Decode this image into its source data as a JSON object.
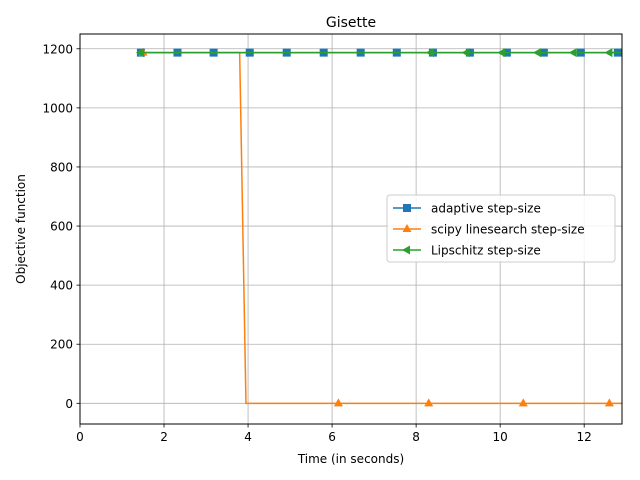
{
  "chart_data": {
    "type": "line",
    "title": "Gisette",
    "xlabel": "Time (in seconds)",
    "ylabel": "Objective function",
    "xlim": [
      0,
      12.9
    ],
    "ylim": [
      -70,
      1250
    ],
    "xticks": [
      0,
      2,
      4,
      6,
      8,
      10,
      12
    ],
    "yticks": [
      0,
      200,
      400,
      600,
      800,
      1000,
      1200
    ],
    "grid": true,
    "legend_position": "center-right",
    "series": [
      {
        "name": "adaptive step-size",
        "color": "#1f77b4",
        "marker": "square",
        "x": [
          1.45,
          2.32,
          3.18,
          4.04,
          4.92,
          5.8,
          6.68,
          7.54,
          8.4,
          9.28,
          10.16,
          11.04,
          11.92,
          12.8,
          12.9
        ],
        "y": [
          1187,
          1187,
          1187,
          1187,
          1187,
          1187,
          1187,
          1187,
          1187,
          1187,
          1187,
          1187,
          1187,
          1187,
          1187
        ],
        "markers_x": [
          1.45,
          2.32,
          3.18,
          4.04,
          4.92,
          5.8,
          6.68,
          7.54,
          8.4,
          9.28,
          10.16,
          11.04,
          11.92,
          12.8
        ]
      },
      {
        "name": "scipy linesearch step-size",
        "color": "#ff7f0e",
        "marker": "triangle-up",
        "x": [
          1.5,
          3.8,
          3.95,
          6.15,
          8.3,
          10.55,
          12.6,
          12.9
        ],
        "y": [
          1187,
          1187,
          0,
          0,
          0,
          0,
          0,
          0
        ],
        "markers_x": [
          1.5,
          6.15,
          8.3,
          10.55,
          12.6
        ]
      },
      {
        "name": "Lipschitz step-size",
        "color": "#2ca02c",
        "marker": "triangle-left",
        "x": [
          1.45,
          8.35,
          9.2,
          10.05,
          10.9,
          11.75,
          12.6,
          12.9
        ],
        "y": [
          1187,
          1187,
          1187,
          1187,
          1187,
          1187,
          1187,
          1187
        ],
        "markers_x": [
          1.45,
          8.35,
          9.2,
          10.05,
          10.9,
          11.75,
          12.6
        ]
      }
    ]
  }
}
